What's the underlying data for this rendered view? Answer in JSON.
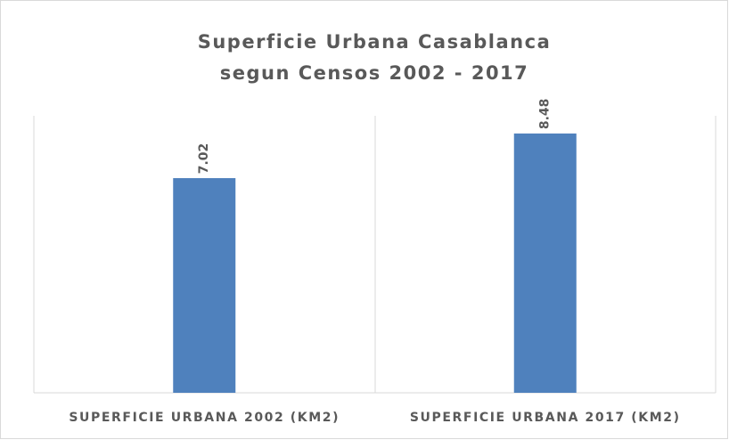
{
  "chart_data": {
    "type": "bar",
    "title": [
      "Superficie Urbana Casablanca",
      "segun Censos 2002 - 2017"
    ],
    "categories": [
      "SUPERFICIE URBANA 2002 (KM2)",
      "SUPERFICIE URBANA 2017 (KM2)"
    ],
    "values": [
      7.02,
      8.48
    ],
    "color": "#4f81bd",
    "ylim": [
      0,
      9
    ]
  }
}
